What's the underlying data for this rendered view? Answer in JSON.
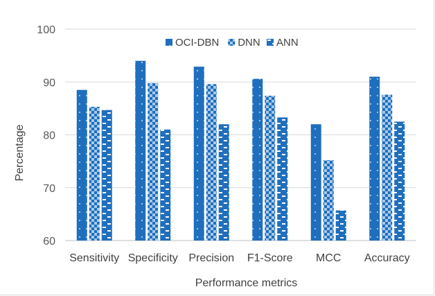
{
  "chart_data": {
    "type": "bar",
    "title": "",
    "xlabel": "Performance metrics",
    "ylabel": "Percentage",
    "ylim": [
      60,
      100
    ],
    "yticks": [
      60,
      70,
      80,
      90,
      100
    ],
    "grid": true,
    "legend_position": "top-center",
    "categories": [
      "Sensitivity",
      "Specificity",
      "Precision",
      "F1-Score",
      "MCC",
      "Accuracy"
    ],
    "series": [
      {
        "name": "OCI-DBN",
        "values": [
          88.5,
          94.0,
          92.9,
          90.6,
          82.0,
          91.0
        ],
        "color": "#1f6fbd",
        "pattern": "dots"
      },
      {
        "name": "DNN",
        "values": [
          85.3,
          89.8,
          89.6,
          87.4,
          75.2,
          87.6
        ],
        "color": "#1f6fbd",
        "pattern": "checker"
      },
      {
        "name": "ANN",
        "values": [
          84.7,
          81.0,
          82.0,
          83.3,
          65.7,
          82.5
        ],
        "color": "#1f6fbd",
        "pattern": "dashes"
      }
    ]
  }
}
